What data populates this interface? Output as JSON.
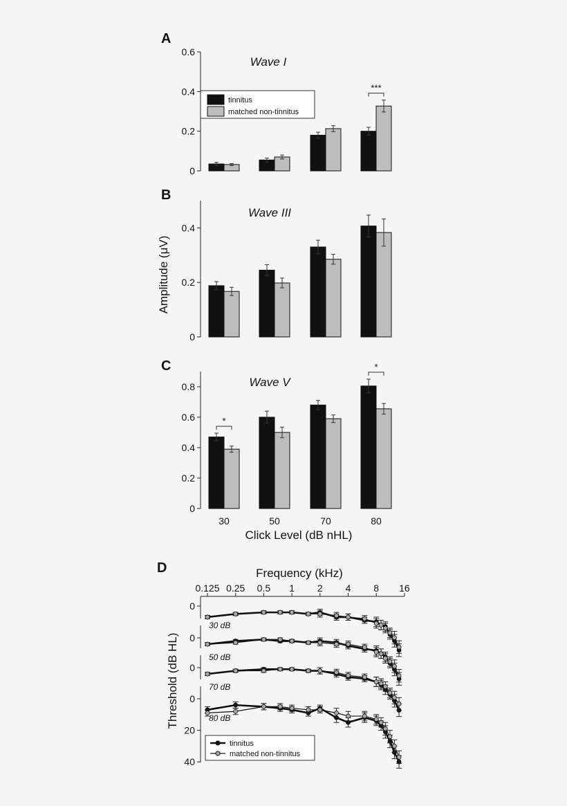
{
  "legend": {
    "tinnitus": "tinnitus",
    "control": "matched non-tinnitus"
  },
  "colors": {
    "tinnitus": "#111111",
    "control": "#bdbdbd",
    "axis": "#222222",
    "control_marker": "#aaaaaa"
  },
  "shared_ylabel": "Amplitude (μV)",
  "chart_data": [
    {
      "type": "bar",
      "panel": "A",
      "title": "Wave I",
      "categories": [
        "30",
        "50",
        "70",
        "80"
      ],
      "ylim": [
        0,
        0.6
      ],
      "yticks": [
        "0",
        "0.2",
        "0.4",
        "0.6"
      ],
      "series": [
        {
          "name": "tinnitus",
          "values": [
            0.035,
            0.055,
            0.18,
            0.2
          ],
          "errors": [
            0.008,
            0.01,
            0.015,
            0.02
          ]
        },
        {
          "name": "matched non-tinnitus",
          "values": [
            0.032,
            0.07,
            0.213,
            0.327
          ],
          "errors": [
            0.005,
            0.01,
            0.015,
            0.03
          ]
        }
      ],
      "significance": [
        {
          "category": "80",
          "label": "***"
        }
      ],
      "legend_position": "upper-left"
    },
    {
      "type": "bar",
      "panel": "B",
      "title": "Wave III",
      "categories": [
        "30",
        "50",
        "70",
        "80"
      ],
      "ylim": [
        0,
        0.5
      ],
      "yticks": [
        "0",
        "0.2",
        "0.4"
      ],
      "series": [
        {
          "name": "tinnitus",
          "values": [
            0.188,
            0.245,
            0.33,
            0.407
          ],
          "errors": [
            0.015,
            0.02,
            0.025,
            0.04
          ]
        },
        {
          "name": "matched non-tinnitus",
          "values": [
            0.167,
            0.198,
            0.285,
            0.383
          ],
          "errors": [
            0.015,
            0.018,
            0.018,
            0.05
          ]
        }
      ],
      "significance": []
    },
    {
      "type": "bar",
      "panel": "C",
      "title": "Wave V",
      "categories": [
        "30",
        "50",
        "70",
        "80"
      ],
      "ylim": [
        0,
        0.9
      ],
      "yticks": [
        "0",
        "0.2",
        "0.4",
        "0.6",
        "0.8"
      ],
      "xlabel": "Click Level (dB nHL)",
      "series": [
        {
          "name": "tinnitus",
          "values": [
            0.47,
            0.6,
            0.68,
            0.805
          ],
          "errors": [
            0.025,
            0.04,
            0.03,
            0.045
          ]
        },
        {
          "name": "matched non-tinnitus",
          "values": [
            0.39,
            0.5,
            0.59,
            0.655
          ],
          "errors": [
            0.02,
            0.035,
            0.025,
            0.035
          ]
        }
      ],
      "significance": [
        {
          "category": "30",
          "label": "*"
        },
        {
          "category": "80",
          "label": "*"
        }
      ]
    },
    {
      "type": "line",
      "panel": "D",
      "xlabel": "Frequency (kHz)",
      "ylabel": "Threshold (dB HL)",
      "xscale": "log2",
      "xticks": [
        0.125,
        0.25,
        0.5,
        1,
        2,
        4,
        8,
        16
      ],
      "xtick_labels": [
        "0.125",
        "0.25",
        "0.5",
        "1",
        "2",
        "4",
        "8",
        "16"
      ],
      "yticks": [
        "0",
        "20",
        "40"
      ],
      "offset_group_labels": [
        "0",
        "0",
        "0",
        "0"
      ],
      "x": [
        0.125,
        0.25,
        0.5,
        0.75,
        1,
        1.5,
        2,
        3,
        4,
        6,
        8,
        9,
        10,
        11.2,
        12.5,
        14
      ],
      "groups": [
        {
          "label": "30 dB",
          "series": [
            {
              "name": "tinnitus",
              "values": [
                7,
                5,
                4,
                4,
                4,
                5,
                4,
                7,
                7,
                9,
                10,
                12,
                13,
                18,
                22,
                28
              ],
              "errors": [
                1,
                1,
                1,
                1,
                1,
                1,
                2,
                2,
                2,
                2,
                3,
                3,
                3,
                3,
                4,
                4
              ]
            },
            {
              "name": "matched non-tinnitus",
              "values": [
                7,
                5,
                4,
                4,
                4,
                5,
                5,
                6,
                7,
                8,
                11,
                12,
                14,
                17,
                20,
                26
              ],
              "errors": [
                1,
                1,
                1,
                1,
                1,
                1,
                2,
                2,
                2,
                2,
                3,
                3,
                3,
                3,
                4,
                4
              ]
            }
          ]
        },
        {
          "label": "50 dB",
          "series": [
            {
              "name": "tinnitus",
              "values": [
                4,
                2,
                1,
                2,
                2,
                3,
                2,
                3,
                5,
                7,
                8,
                10,
                12,
                16,
                20,
                26
              ],
              "errors": [
                1,
                1,
                1,
                1,
                1,
                1,
                2,
                2,
                2,
                2,
                3,
                3,
                3,
                3,
                4,
                4
              ]
            },
            {
              "name": "matched non-tinnitus",
              "values": [
                4,
                3,
                1,
                1,
                2,
                3,
                3,
                4,
                4,
                6,
                9,
                10,
                13,
                15,
                18,
                24
              ],
              "errors": [
                1,
                1,
                1,
                1,
                1,
                1,
                2,
                2,
                2,
                2,
                3,
                3,
                3,
                3,
                4,
                4
              ]
            }
          ]
        },
        {
          "label": "70 dB",
          "series": [
            {
              "name": "tinnitus",
              "values": [
                4,
                2,
                1,
                1,
                1,
                2,
                2,
                4,
                6,
                7,
                9,
                11,
                14,
                17,
                21,
                27
              ],
              "errors": [
                1,
                1,
                1,
                1,
                1,
                1,
                2,
                2,
                2,
                2,
                3,
                3,
                3,
                3,
                4,
                4
              ]
            },
            {
              "name": "matched non-tinnitus",
              "values": [
                4,
                2,
                2,
                1,
                1,
                2,
                2,
                3,
                5,
                6,
                9,
                10,
                12,
                16,
                19,
                23
              ],
              "errors": [
                1,
                1,
                1,
                1,
                1,
                1,
                2,
                2,
                2,
                2,
                3,
                3,
                3,
                3,
                4,
                4
              ]
            }
          ]
        },
        {
          "label": "80 dB",
          "series": [
            {
              "name": "tinnitus",
              "values": [
                7,
                4,
                5,
                6,
                7,
                9,
                6,
                12,
                15,
                12,
                14,
                17,
                21,
                27,
                34,
                40
              ],
              "errors": [
                2,
                2,
                2,
                2,
                2,
                2,
                2,
                3,
                3,
                3,
                3,
                3,
                4,
                4,
                4,
                4
              ]
            },
            {
              "name": "matched non-tinnitus",
              "values": [
                9,
                8,
                5,
                5,
                6,
                7,
                7,
                9,
                11,
                11,
                13,
                15,
                19,
                24,
                30,
                37
              ],
              "errors": [
                2,
                2,
                2,
                2,
                2,
                2,
                2,
                3,
                3,
                3,
                3,
                3,
                4,
                4,
                4,
                4
              ]
            }
          ]
        }
      ]
    }
  ]
}
